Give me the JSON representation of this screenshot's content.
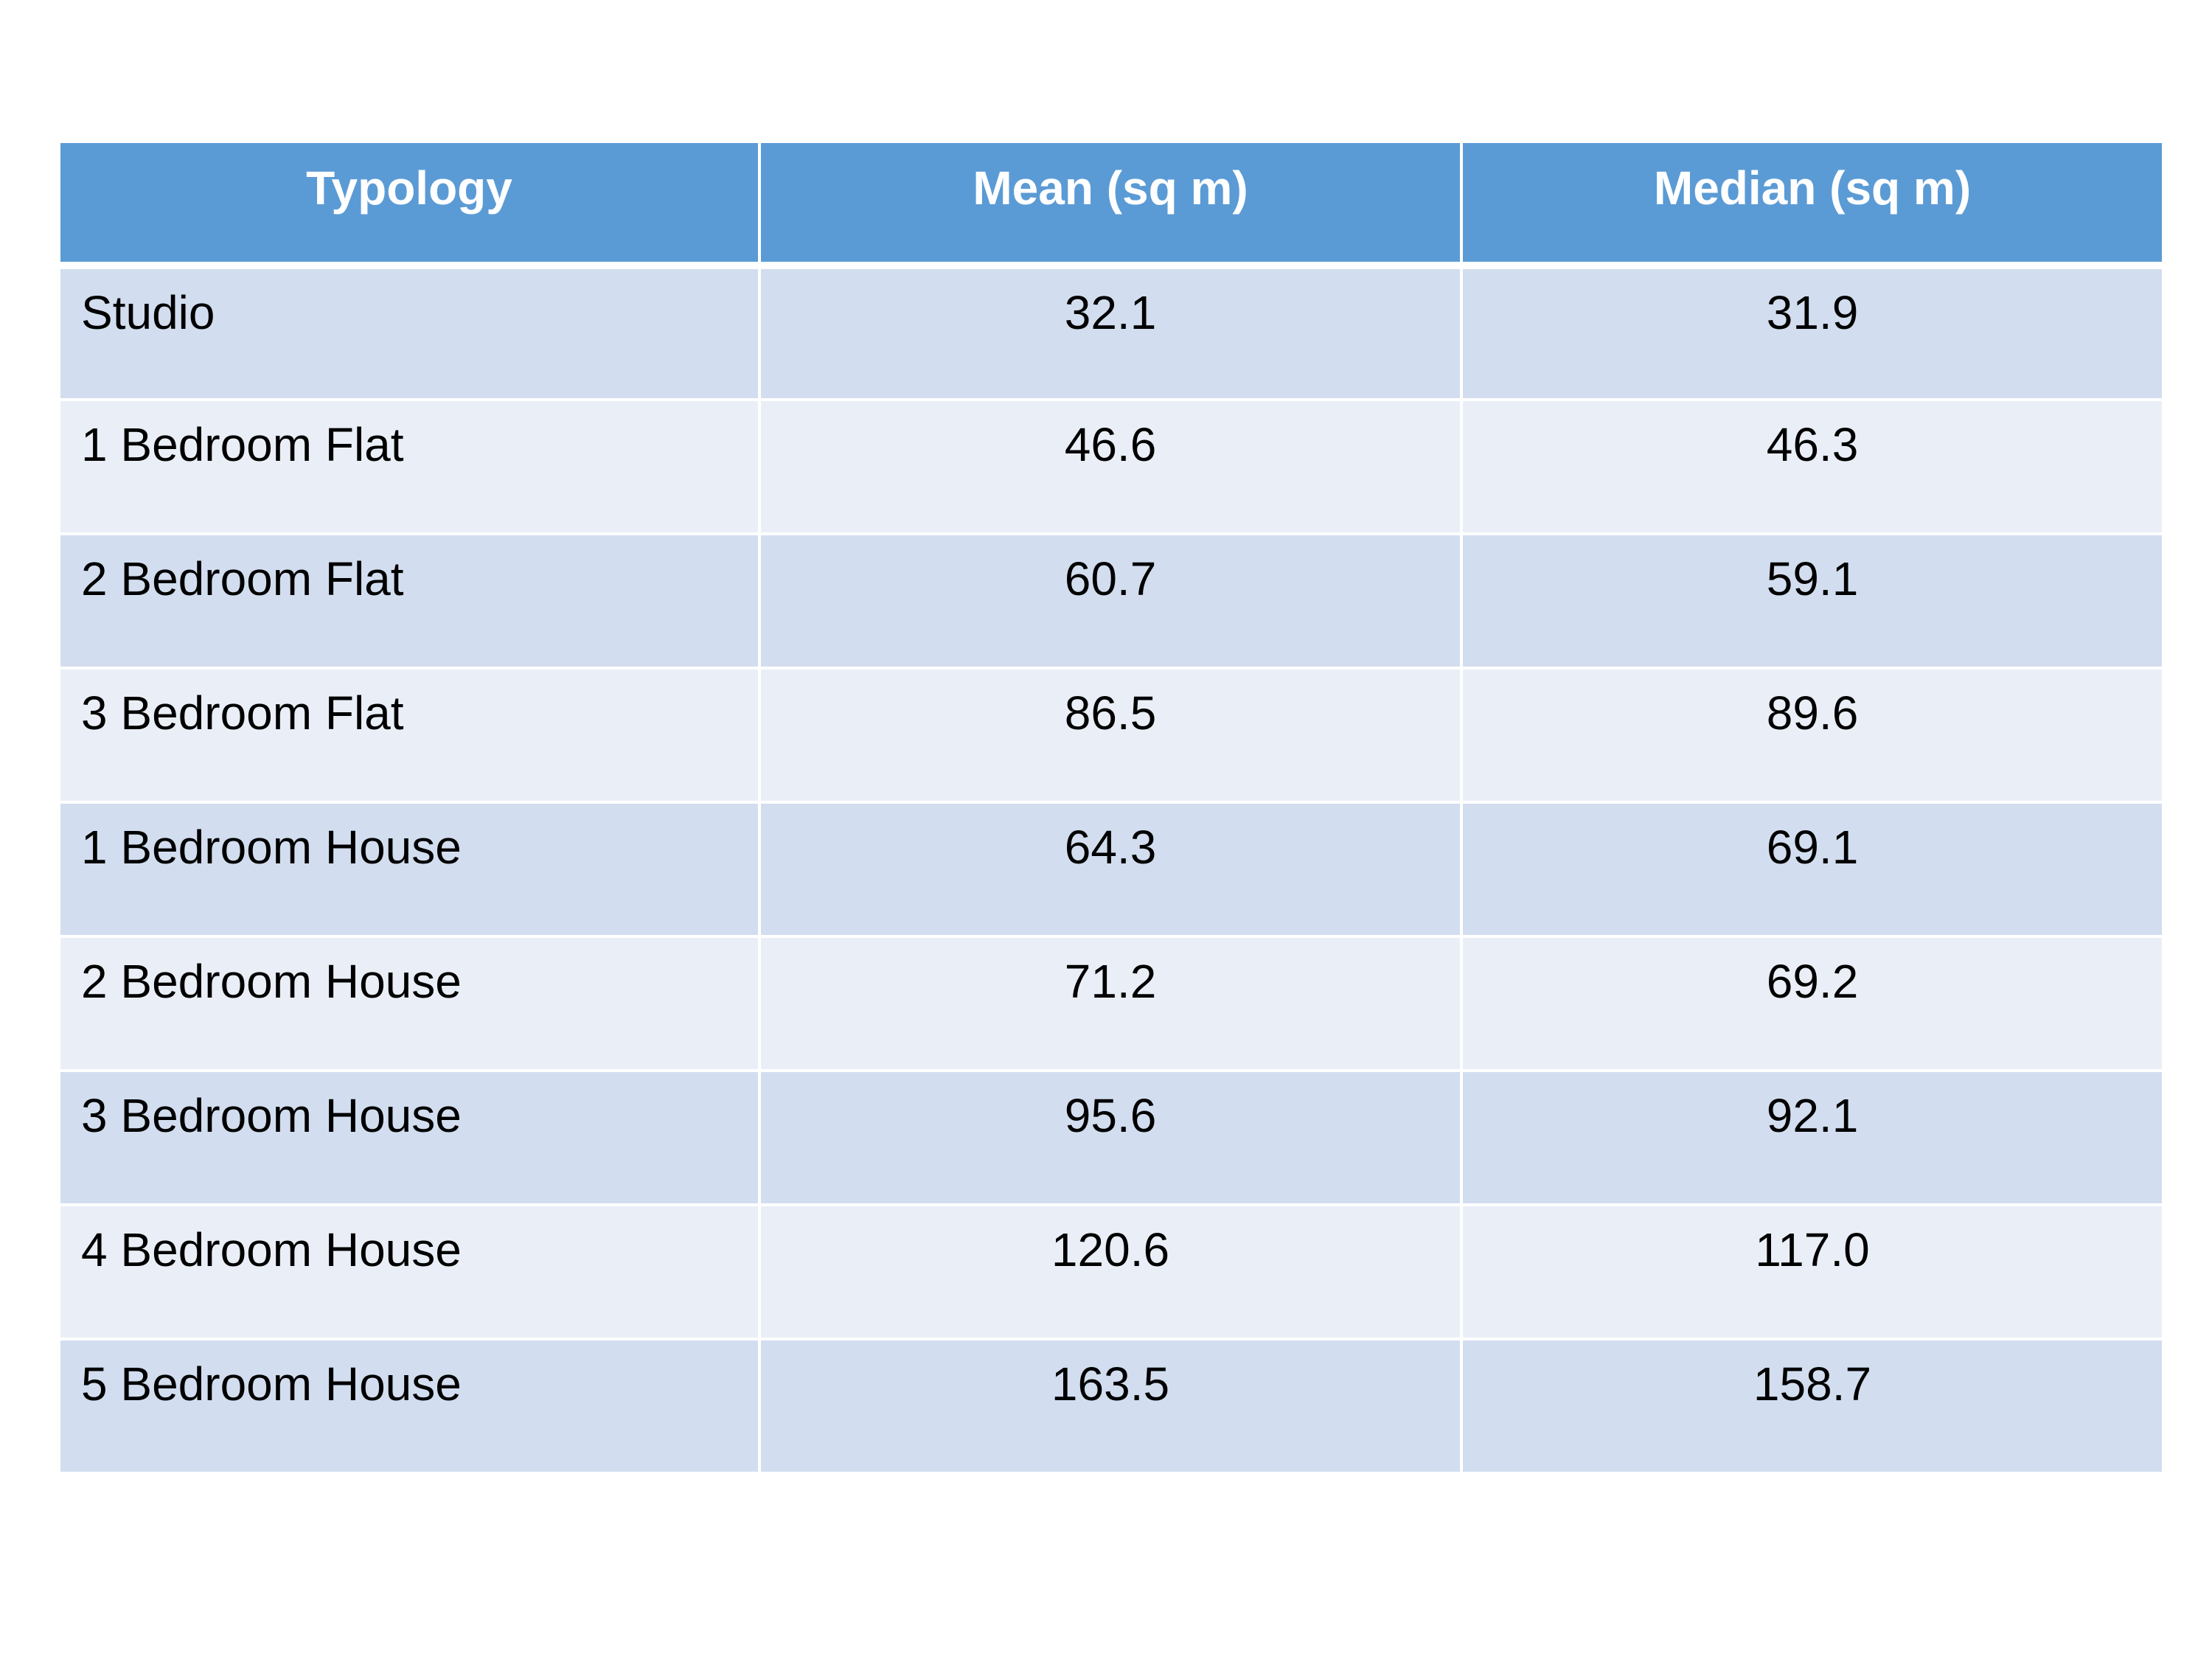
{
  "table": {
    "headers": [
      "Typology",
      "Mean (sq m)",
      "Median (sq m)"
    ],
    "rows": [
      {
        "typology": "Studio",
        "mean": "32.1",
        "median": "31.9"
      },
      {
        "typology": "1 Bedroom Flat",
        "mean": "46.6",
        "median": "46.3"
      },
      {
        "typology": "2 Bedroom Flat",
        "mean": "60.7",
        "median": "59.1"
      },
      {
        "typology": "3 Bedroom Flat",
        "mean": "86.5",
        "median": "89.6"
      },
      {
        "typology": "1 Bedroom House",
        "mean": "64.3",
        "median": "69.1"
      },
      {
        "typology": "2 Bedroom House",
        "mean": "71.2",
        "median": "69.2"
      },
      {
        "typology": "3 Bedroom House",
        "mean": "95.6",
        "median": "92.1"
      },
      {
        "typology": "4 Bedroom House",
        "mean": "120.6",
        "median": "117.0"
      },
      {
        "typology": "5 Bedroom House",
        "mean": "163.5",
        "median": "158.7"
      }
    ]
  },
  "colors": {
    "header_bg": "#5b9bd5",
    "header_text": "#ffffff",
    "row_odd_bg": "#d2deef",
    "row_even_bg": "#eaeff7",
    "border": "#ffffff"
  }
}
